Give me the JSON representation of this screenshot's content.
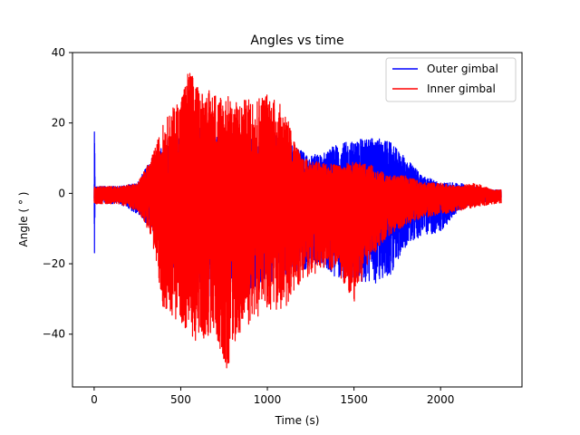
{
  "chart_data": {
    "type": "line",
    "title": "Angles vs time",
    "xlabel": "Time (s)",
    "ylabel": "Angle ( ° )",
    "xlim": [
      -125,
      2470
    ],
    "ylim": [
      -55,
      40
    ],
    "xticks": [
      0,
      500,
      1000,
      1500,
      2000
    ],
    "yticks": [
      -40,
      -20,
      0,
      20,
      40
    ],
    "xtick_labels": [
      "0",
      "500",
      "1000",
      "1500",
      "2000"
    ],
    "ytick_labels": [
      "−40",
      "−20",
      "0",
      "20",
      "40"
    ],
    "legend_position": "top-right",
    "grid": false,
    "series": [
      {
        "name": "Outer gimbal",
        "color": "#0000ff",
        "envelope": {
          "t": [
            0,
            2,
            5,
            50,
            150,
            250,
            330,
            400,
            500,
            600,
            700,
            800,
            900,
            1000,
            1100,
            1200,
            1300,
            1400,
            1500,
            1600,
            1700,
            1800,
            1900,
            2000,
            2100,
            2200,
            2300,
            2350
          ],
          "upper": [
            1,
            23,
            2,
            2,
            2,
            3,
            10,
            15,
            18,
            20,
            18,
            17,
            16,
            18,
            15,
            12,
            11,
            14,
            15,
            16,
            15,
            10,
            5,
            3,
            3,
            2,
            1,
            1
          ],
          "lower": [
            -2,
            -23,
            -2,
            -3,
            -3,
            -6,
            -10,
            -18,
            -25,
            -28,
            -30,
            -28,
            -29,
            -26,
            -24,
            -22,
            -20,
            -24,
            -25,
            -26,
            -24,
            -15,
            -12,
            -11,
            -5,
            -3,
            -2,
            -2
          ]
        }
      },
      {
        "name": "Inner gimbal",
        "color": "#ff0000",
        "envelope": {
          "t": [
            0,
            50,
            150,
            250,
            330,
            400,
            500,
            550,
            600,
            700,
            770,
            800,
            900,
            1000,
            1100,
            1150,
            1200,
            1300,
            1400,
            1500,
            1600,
            1700,
            1800,
            1900,
            2000,
            2100,
            2200,
            2300,
            2350
          ],
          "upper": [
            2,
            2,
            2,
            3,
            10,
            20,
            28,
            36,
            30,
            29,
            28,
            26,
            27,
            29,
            24,
            16,
            10,
            9,
            8,
            9,
            8,
            5,
            5,
            3,
            3,
            2,
            3,
            1,
            1
          ],
          "lower": [
            -3,
            -3,
            -3,
            -5,
            -12,
            -33,
            -37,
            -40,
            -43,
            -40,
            -51,
            -43,
            -37,
            -33,
            -34,
            -28,
            -25,
            -22,
            -22,
            -31,
            -18,
            -12,
            -9,
            -7,
            -6,
            -5,
            -4,
            -3,
            -3
          ]
        }
      }
    ]
  }
}
